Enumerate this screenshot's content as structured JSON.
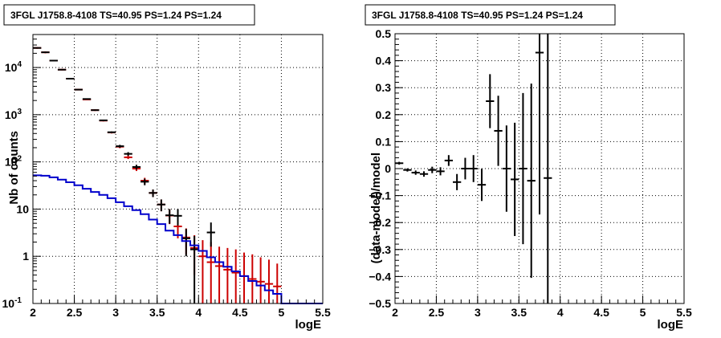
{
  "chart_data": [
    {
      "type": "scatter",
      "title": "3FGL J1758.8-4108 TS=40.95 PS=1.24 PS=1.24",
      "xlabel": "logE",
      "ylabel": "Nb of counts",
      "xlim": [
        2,
        5.5
      ],
      "ylim": [
        0.1,
        50000
      ],
      "yscale": "log",
      "grid": true,
      "x_ticks": [
        "2",
        "2.5",
        "3",
        "3.5",
        "4",
        "4.5",
        "5",
        "5.5"
      ],
      "y_ticks": [
        {
          "value": 0.1,
          "base": "10",
          "exp": "-1",
          "text": ""
        },
        {
          "value": 1,
          "base": "",
          "exp": "",
          "text": "1"
        },
        {
          "value": 10,
          "base": "",
          "exp": "",
          "text": "10"
        },
        {
          "value": 100,
          "base": "10",
          "exp": "2",
          "text": ""
        },
        {
          "value": 1000,
          "base": "10",
          "exp": "3",
          "text": ""
        },
        {
          "value": 10000,
          "base": "10",
          "exp": "4",
          "text": ""
        }
      ],
      "bin_width": 0.1,
      "series": [
        {
          "color": "#cc0000",
          "style": "crosses",
          "x": [
            2.05,
            2.15,
            2.25,
            2.35,
            2.45,
            2.55,
            2.65,
            2.75,
            2.85,
            2.95,
            3.05,
            3.15,
            3.25,
            3.35,
            3.45,
            3.55,
            3.65,
            3.75,
            3.85,
            3.95,
            4.05,
            4.15,
            4.25,
            4.35,
            4.45,
            4.55,
            4.65,
            4.75,
            4.85,
            4.95
          ],
          "y": [
            26000,
            21000,
            14000,
            9000,
            5800,
            3400,
            2100,
            1250,
            750,
            420,
            210,
            125,
            72,
            40,
            22,
            12.5,
            7.3,
            4.3,
            2.5,
            1.5,
            1.0,
            0.75,
            0.62,
            0.52,
            0.45,
            0.38,
            0.33,
            0.29,
            0.26,
            0.23
          ],
          "ylow": [
            25000,
            20000,
            13500,
            8700,
            5600,
            3300,
            2050,
            1200,
            720,
            400,
            195,
            115,
            64,
            34,
            18,
            9,
            4.8,
            2.4,
            1.1,
            0.4,
            0.1,
            0.1,
            0.1,
            0.1,
            0.1,
            0.1,
            0.1,
            0.1,
            0.1,
            0.1
          ],
          "yhigh": [
            27000,
            22000,
            14500,
            9300,
            6000,
            3500,
            2150,
            1300,
            780,
            440,
            225,
            135,
            80,
            46,
            26,
            16,
            10,
            6.2,
            3.9,
            2.8,
            2.2,
            2.0,
            1.6,
            1.5,
            1.4,
            1.2,
            1.1,
            0.95,
            0.85,
            0.7
          ]
        },
        {
          "color": "#000000",
          "style": "crosses",
          "x": [
            2.05,
            2.15,
            2.25,
            2.35,
            2.45,
            2.55,
            2.65,
            2.75,
            2.85,
            2.95,
            3.05,
            3.15,
            3.25,
            3.35,
            3.45,
            3.55,
            3.65,
            3.75,
            3.85,
            3.95,
            4.15
          ],
          "y": [
            26000,
            21000,
            14000,
            9000,
            5800,
            3400,
            2150,
            1250,
            760,
            425,
            215,
            148,
            78,
            38,
            22,
            12.5,
            7.4,
            7.2,
            2.4,
            1.4,
            3.2
          ],
          "ylow": [
            25500,
            20500,
            13700,
            8800,
            5650,
            3300,
            2100,
            1220,
            735,
            410,
            200,
            135,
            69,
            32,
            18,
            9,
            4.9,
            4.5,
            1.0,
            0.1,
            1.6
          ],
          "yhigh": [
            26500,
            21500,
            14300,
            9200,
            5950,
            3500,
            2200,
            1280,
            785,
            440,
            230,
            161,
            87,
            44,
            26,
            16,
            10,
            10,
            3.8,
            2.7,
            5.2
          ]
        },
        {
          "color": "#0000cc",
          "style": "step",
          "edges": [
            2.0,
            2.1,
            2.2,
            2.3,
            2.4,
            2.5,
            2.6,
            2.7,
            2.8,
            2.9,
            3.0,
            3.1,
            3.2,
            3.3,
            3.4,
            3.5,
            3.6,
            3.7,
            3.8,
            3.9,
            4.0,
            4.1,
            4.2,
            4.3,
            4.4,
            4.5,
            4.6,
            4.7,
            4.8,
            4.9,
            5.0,
            5.1,
            5.2,
            5.3,
            5.4,
            5.5
          ],
          "values": [
            52,
            51,
            47,
            42,
            37,
            32,
            27,
            23,
            20,
            17,
            14,
            11.5,
            9.5,
            7.8,
            6.0,
            4.8,
            3.5,
            2.8,
            2.1,
            1.7,
            1.3,
            0.95,
            0.75,
            0.6,
            0.48,
            0.38,
            0.3,
            0.24,
            0.19,
            0.16,
            0.1,
            0.1,
            0.1,
            0.1,
            0.1
          ]
        }
      ]
    },
    {
      "type": "scatter",
      "title": "3FGL J1758.8-4108 TS=40.95 PS=1.24 PS=1.24",
      "xlabel": "logE",
      "ylabel": "(data-model)/model",
      "xlim": [
        2,
        5.5
      ],
      "ylim": [
        -0.5,
        0.5
      ],
      "yscale": "linear",
      "grid": true,
      "x_ticks": [
        "2",
        "2.5",
        "3",
        "3.5",
        "4",
        "4.5",
        "5",
        "5.5"
      ],
      "y_ticks": [
        "−0.5",
        "−0.4",
        "−0.3",
        "−0.2",
        "−0.1",
        "0",
        "0.1",
        "0.2",
        "0.3",
        "0.4",
        "0.5"
      ],
      "bin_width": 0.1,
      "series": [
        {
          "color": "#000000",
          "style": "crosses",
          "x": [
            2.05,
            2.15,
            2.25,
            2.35,
            2.45,
            2.55,
            2.65,
            2.75,
            2.85,
            2.95,
            3.05,
            3.15,
            3.25,
            3.35,
            3.45,
            3.55,
            3.65,
            3.75,
            3.85
          ],
          "y": [
            0.02,
            -0.005,
            -0.015,
            -0.02,
            -0.005,
            -0.01,
            0.03,
            -0.05,
            0.0,
            0.0,
            -0.06,
            0.25,
            0.14,
            0.0,
            -0.04,
            0.0,
            -0.045,
            0.43,
            -0.035
          ],
          "yerr": [
            0.005,
            0.006,
            0.008,
            0.01,
            0.012,
            0.015,
            0.02,
            0.03,
            0.04,
            0.05,
            0.06,
            0.1,
            0.13,
            0.16,
            0.21,
            0.28,
            0.36,
            0.6,
            0.9
          ]
        }
      ]
    }
  ]
}
